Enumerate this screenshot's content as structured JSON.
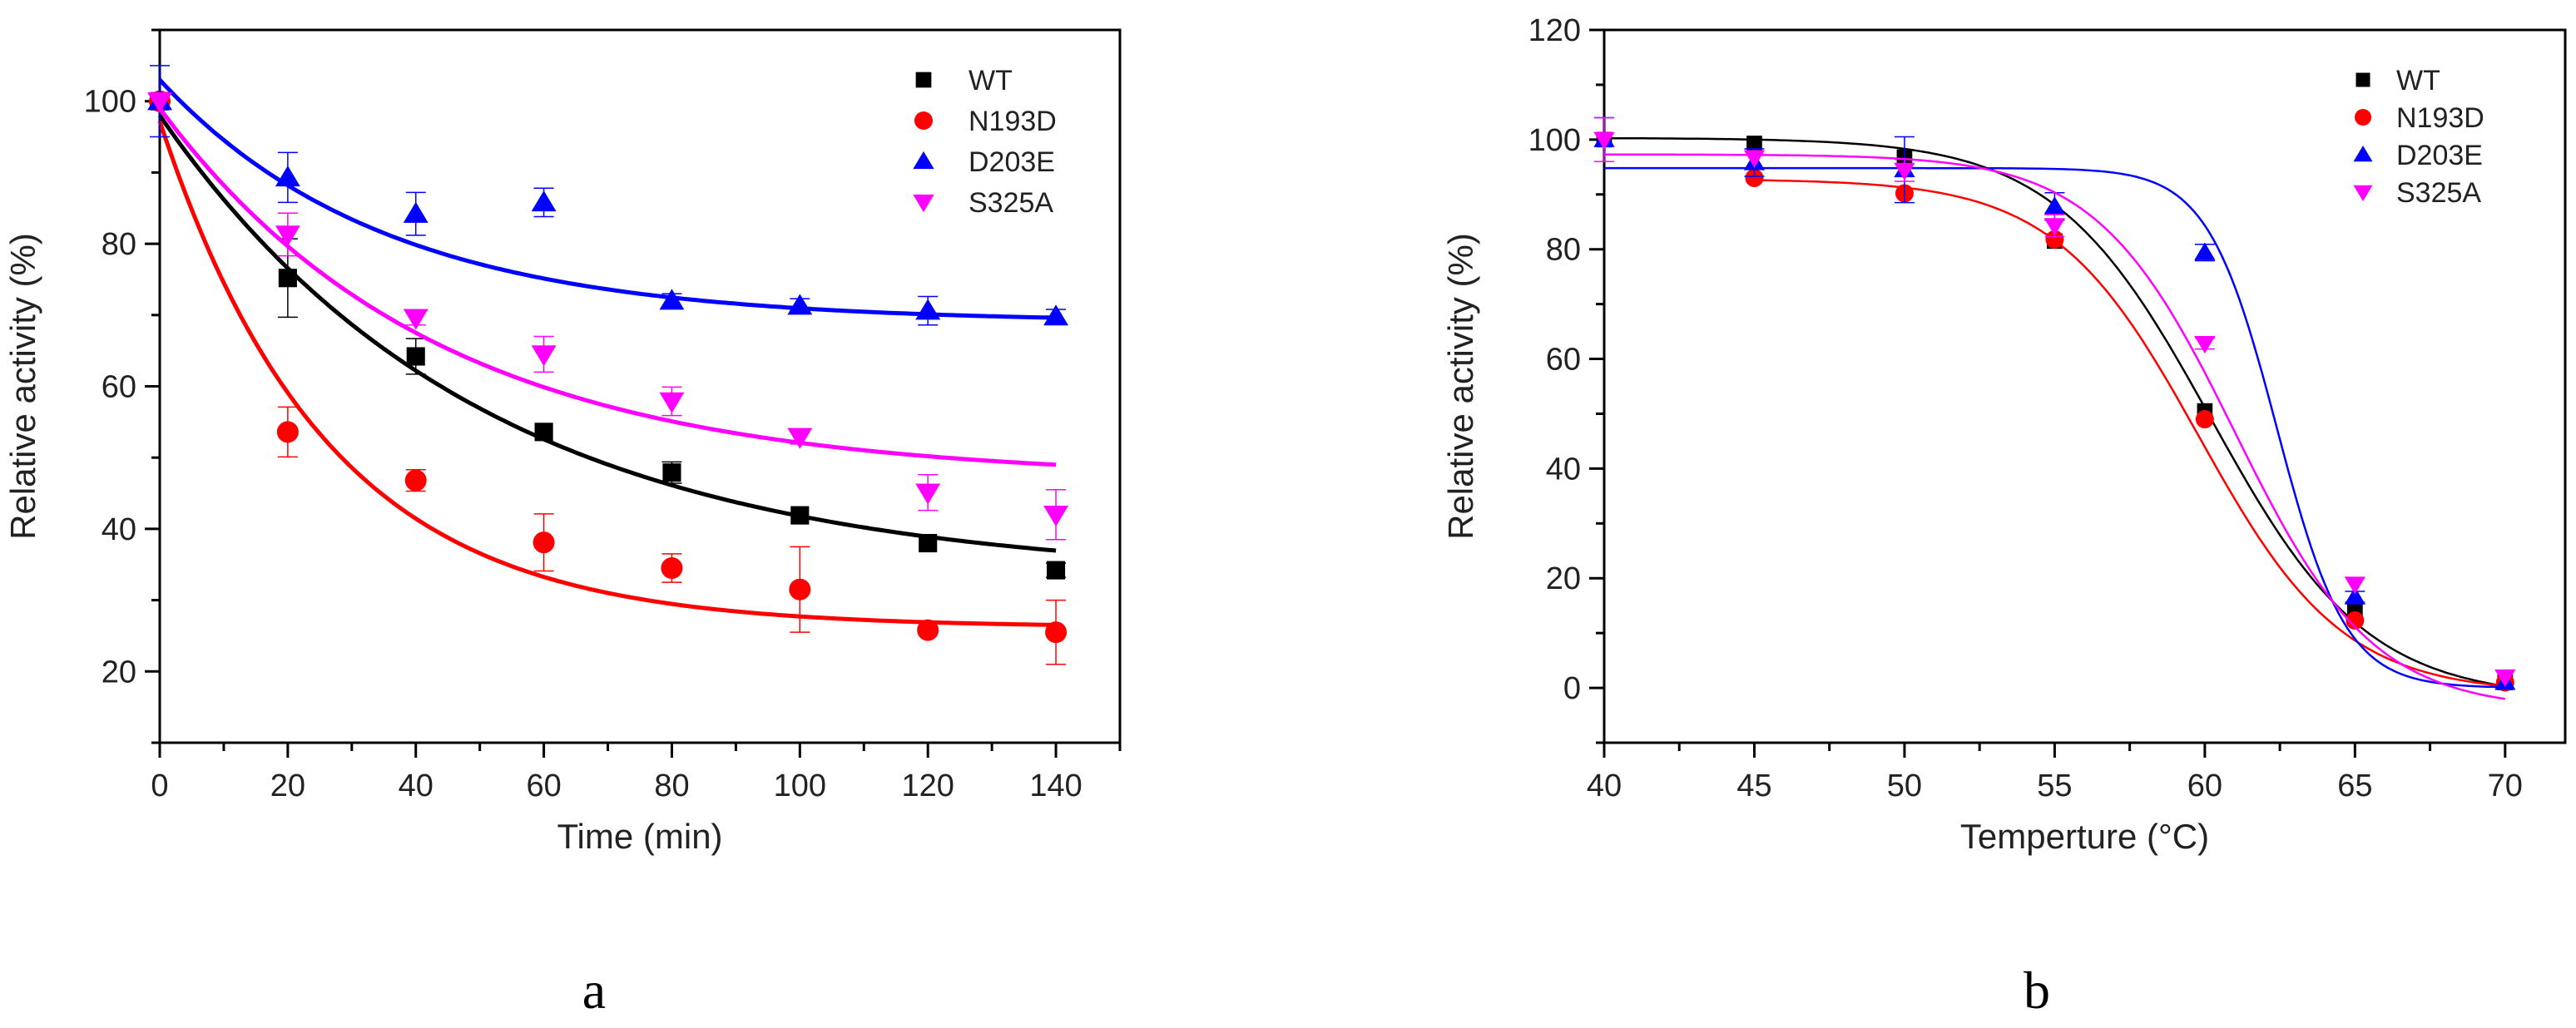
{
  "chart_data": [
    {
      "id": "a",
      "type": "scatter",
      "panel_label": "a",
      "title": "",
      "xlabel": "Time (min)",
      "ylabel": "Relative activity (%)",
      "xlim": [
        0,
        150
      ],
      "ylim": [
        10,
        110
      ],
      "xticks": [
        0,
        20,
        40,
        60,
        80,
        100,
        120,
        140
      ],
      "yticks": [
        20,
        40,
        60,
        80,
        100
      ],
      "grid": false,
      "legend_position": "top-right",
      "series": [
        {
          "name": "WT",
          "color": "#000000",
          "marker": "square",
          "x": [
            0,
            20,
            40,
            60,
            80,
            100,
            120,
            140
          ],
          "y": [
            100,
            75.2,
            64.2,
            53.6,
            47.9,
            41.9,
            38,
            34.2
          ],
          "err": [
            0,
            5.5,
            2.5,
            0,
            1.5,
            0,
            0,
            1
          ],
          "fit": {
            "model": "exponential",
            "a": 33.0,
            "b": 65.0,
            "tau": 50.0
          }
        },
        {
          "name": "N193D",
          "color": "#ff0000",
          "marker": "circle",
          "x": [
            0,
            20,
            40,
            60,
            80,
            100,
            120,
            140
          ],
          "y": [
            100,
            53.6,
            46.8,
            38.1,
            34.5,
            31.5,
            25.8,
            25.5
          ],
          "err": [
            0,
            3.5,
            1.5,
            4,
            2,
            6,
            0,
            4.5
          ],
          "fit": {
            "model": "exponential",
            "a": 26.2,
            "b": 71.0,
            "tau": 26.0
          }
        },
        {
          "name": "D203E",
          "color": "#0000ff",
          "marker": "triangle-up",
          "x": [
            0,
            20,
            40,
            60,
            80,
            100,
            120,
            140
          ],
          "y": [
            100,
            89.3,
            84.2,
            85.8,
            72.0,
            71.3,
            70.6,
            69.8
          ],
          "err": [
            5,
            3.5,
            3,
            2,
            1,
            1,
            2,
            1
          ],
          "fit": {
            "model": "exponential",
            "a": 69.0,
            "b": 34.0,
            "tau": 35.0
          }
        },
        {
          "name": "S325A",
          "color": "#ff00ff",
          "marker": "triangle-down",
          "x": [
            0,
            20,
            40,
            60,
            80,
            100,
            120,
            140
          ],
          "y": [
            100,
            81.3,
            69.6,
            64.5,
            57.9,
            52.9,
            45.1,
            42.0
          ],
          "err": [
            0,
            3,
            1,
            2.5,
            2,
            1,
            2.5,
            3.5
          ],
          "fit": {
            "model": "exponential",
            "a": 47.0,
            "b": 52.0,
            "tau": 43.0
          }
        }
      ]
    },
    {
      "id": "b",
      "type": "scatter",
      "panel_label": "b",
      "title": "",
      "xlabel": "Temperture (°C)",
      "ylabel": "Relative activity (%)",
      "xlim": [
        40,
        72
      ],
      "ylim": [
        -10,
        120
      ],
      "xticks": [
        40,
        45,
        50,
        55,
        60,
        65,
        70
      ],
      "yticks": [
        0,
        20,
        40,
        60,
        80,
        100,
        120
      ],
      "grid": false,
      "legend_position": "top-right",
      "series": [
        {
          "name": "WT",
          "color": "#000000",
          "marker": "square",
          "x": [
            40,
            45,
            50,
            55,
            60,
            65,
            70
          ],
          "y": [
            100,
            99.3,
            96.8,
            81.5,
            50.5,
            14.5,
            1.0
          ],
          "err": [
            0,
            0,
            0,
            0,
            0,
            0,
            0
          ],
          "fit": {
            "model": "boltzmann",
            "top": 100.3,
            "bottom": -2.0,
            "x0": 60.2,
            "dx": 2.6
          }
        },
        {
          "name": "N193D",
          "color": "#ff0000",
          "marker": "circle",
          "x": [
            45,
            50,
            55,
            60,
            65,
            70
          ],
          "y": [
            93,
            90.2,
            81.8,
            49.0,
            12.3,
            1.0
          ],
          "err": [
            0,
            0,
            0,
            0,
            0,
            0
          ],
          "fit": {
            "model": "boltzmann",
            "top": 92.8,
            "bottom": -1.0,
            "x0": 59.8,
            "dx": 2.4
          }
        },
        {
          "name": "D203E",
          "color": "#0000ff",
          "marker": "triangle-up",
          "x": [
            40,
            45,
            50,
            55,
            60,
            65,
            70
          ],
          "y": [
            100,
            95.8,
            94.5,
            87.8,
            79.4,
            16.6,
            1.0
          ],
          "err": [
            4,
            2.5,
            6,
            2.5,
            1.5,
            1,
            0
          ],
          "fit": {
            "model": "boltzmann",
            "top": 94.8,
            "bottom": 0.0,
            "x0": 62.4,
            "dx": 1.15
          }
        },
        {
          "name": "S325A",
          "color": "#ff00ff",
          "marker": "triangle-down",
          "x": [
            40,
            45,
            50,
            55,
            60,
            65,
            70
          ],
          "y": [
            100,
            96.7,
            94.4,
            84.3,
            62.8,
            18.9,
            2.0
          ],
          "err": [
            4,
            0,
            2,
            2,
            1,
            0,
            0
          ],
          "fit": {
            "model": "boltzmann",
            "top": 97.3,
            "bottom": -4.0,
            "x0": 61.0,
            "dx": 2.3
          }
        }
      ]
    }
  ]
}
